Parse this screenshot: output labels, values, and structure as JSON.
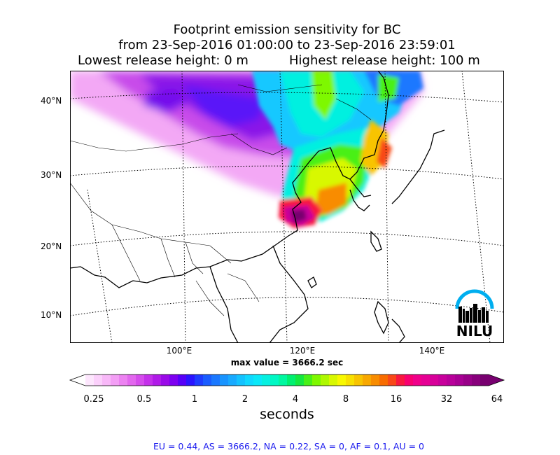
{
  "title": {
    "line1": "Footprint emission sensitivity for BC",
    "line2": "from 23-Sep-2016 01:00:00 to 23-Sep-2016 23:59:01",
    "line3_left": "Lowest release height: 0 m",
    "line3_right": "Highest release height: 100 m"
  },
  "map": {
    "lat_labels": [
      "40°N",
      "30°N",
      "20°N",
      "10°N"
    ],
    "lon_labels": [
      "100°E",
      "120°E",
      "140°E"
    ],
    "logo_text": "NILU",
    "colors": {
      "coast": "#000000",
      "grid": "#000000",
      "logo_arc": "#00aeef"
    }
  },
  "max_value_text": "max value = 3666.2 sec",
  "colorbar": {
    "tick_labels": [
      "0.25",
      "0.5",
      "1",
      "2",
      "4",
      "8",
      "16",
      "32",
      "64"
    ],
    "unit": "seconds",
    "colors": [
      "#fde6fd",
      "#fbd0fb",
      "#f8b8f8",
      "#f39ef5",
      "#ec82f1",
      "#e267ee",
      "#d54cec",
      "#c430ea",
      "#b01ae8",
      "#9a0ae8",
      "#7d00f0",
      "#5600f8",
      "#2a14ff",
      "#1e3cff",
      "#1a5cff",
      "#1a78ff",
      "#1894ff",
      "#18aaff",
      "#14c2ff",
      "#10d8ff",
      "#0ae8f8",
      "#06f0e0",
      "#00f8c4",
      "#00f8a0",
      "#00f070",
      "#14e840",
      "#48f018",
      "#7ef800",
      "#aef800",
      "#d8f800",
      "#f8f800",
      "#f8e000",
      "#f8c400",
      "#f8a800",
      "#f88c00",
      "#f86c00",
      "#f84818",
      "#f81840",
      "#f80070",
      "#f0008a",
      "#e60094",
      "#d8009a",
      "#c8009c",
      "#b8009a",
      "#a80094",
      "#980088",
      "#88007c",
      "#780070"
    ]
  },
  "stats": "EU = 0.44,  AS = 3666.2,  NA = 0.22,  SA = 0,  AF = 0.1,  AU = 0"
}
